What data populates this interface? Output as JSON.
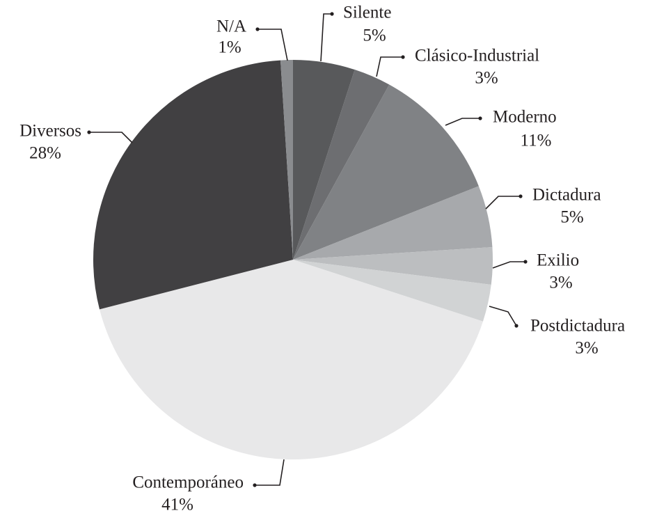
{
  "chart_data": {
    "type": "pie",
    "categories": [
      "Silente",
      "Clásico-Industrial",
      "Moderno",
      "Dictadura",
      "Exilio",
      "Postdictadura",
      "Contemporáneo",
      "Diversos",
      "N/A"
    ],
    "values": [
      5,
      3,
      11,
      5,
      3,
      3,
      41,
      28,
      1
    ],
    "value_labels": [
      "5%",
      "3%",
      "11%",
      "5%",
      "3%",
      "3%",
      "41%",
      "28%",
      "1%"
    ],
    "colors": [
      "#58595b",
      "#6d6e71",
      "#808285",
      "#a7a9ac",
      "#bcbec0",
      "#d1d3d4",
      "#e8e8e9",
      "#414042",
      "#8a8c8f"
    ]
  }
}
